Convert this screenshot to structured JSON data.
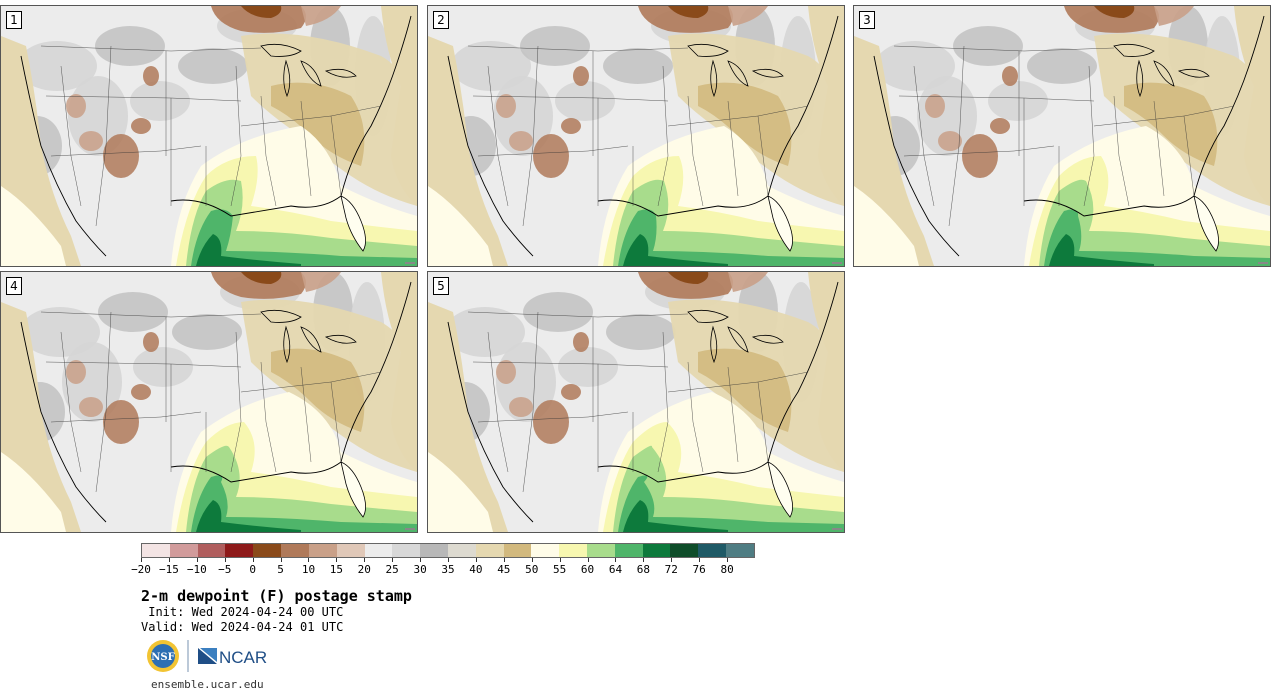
{
  "title": "2-m dewpoint (F) postage stamp",
  "init_label": " Init:",
  "init_value": "Wed 2024-04-24 00 UTC",
  "valid_label": "Valid:",
  "valid_value": "Wed 2024-04-24 01 UTC",
  "website": "ensemble.ucar.edu",
  "logos": {
    "nsf": "NSF",
    "ncar": "NCAR"
  },
  "panels": [
    {
      "label": "1",
      "variant": 0
    },
    {
      "label": "2",
      "variant": 1
    },
    {
      "label": "3",
      "variant": 2
    },
    {
      "label": "4",
      "variant": 3
    },
    {
      "label": "5",
      "variant": 4
    }
  ],
  "colorbar": {
    "colors": [
      "#f3e4e4",
      "#d19b9b",
      "#b05e5e",
      "#8e1a1a",
      "#8a4a1a",
      "#b07a5a",
      "#c9a088",
      "#e0c8b8",
      "#ececec",
      "#d8d8d8",
      "#b8b8b8",
      "#dddad0",
      "#e5d8b0",
      "#d2b97e",
      "#fffce8",
      "#f7f7b0",
      "#a8dc8c",
      "#4fb56a",
      "#0d7a3c",
      "#0f4d2a",
      "#1f5a66",
      "#4f7d83"
    ],
    "tick_labels": [
      "−20",
      "−15",
      "−10",
      "−5",
      "0",
      "5",
      "10",
      "15",
      "20",
      "25",
      "30",
      "35",
      "40",
      "45",
      "50",
      "55",
      "60",
      "64",
      "68",
      "72",
      "76",
      "80"
    ]
  }
}
